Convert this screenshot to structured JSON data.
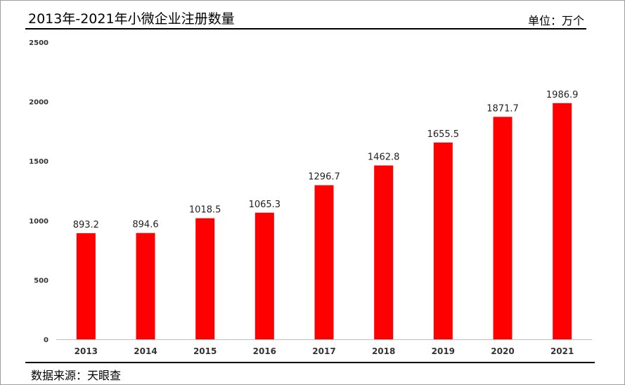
{
  "header": {
    "title": "2013年-2021年小微企业注册数量",
    "unit": "单位：万个"
  },
  "footer": {
    "source": "数据来源：天眼查"
  },
  "chart_data": {
    "type": "bar",
    "title": "2013年-2021年小微企业注册数量",
    "xlabel": "",
    "ylabel": "",
    "categories": [
      "2013",
      "2014",
      "2015",
      "2016",
      "2017",
      "2018",
      "2019",
      "2020",
      "2021"
    ],
    "values": [
      893.2,
      894.6,
      1018.5,
      1065.3,
      1296.7,
      1462.8,
      1655.5,
      1871.7,
      1986.9
    ],
    "value_labels": [
      "893.2",
      "894.6",
      "1018.5",
      "1065.3",
      "1296.7",
      "1462.8",
      "1655.5",
      "1871.7",
      "1986.9"
    ],
    "ylim": [
      0,
      2500
    ],
    "yticks": [
      "0",
      "500",
      "1000",
      "1500",
      "2000",
      "2500"
    ],
    "grid": false,
    "bar_color": "#ff0000"
  }
}
